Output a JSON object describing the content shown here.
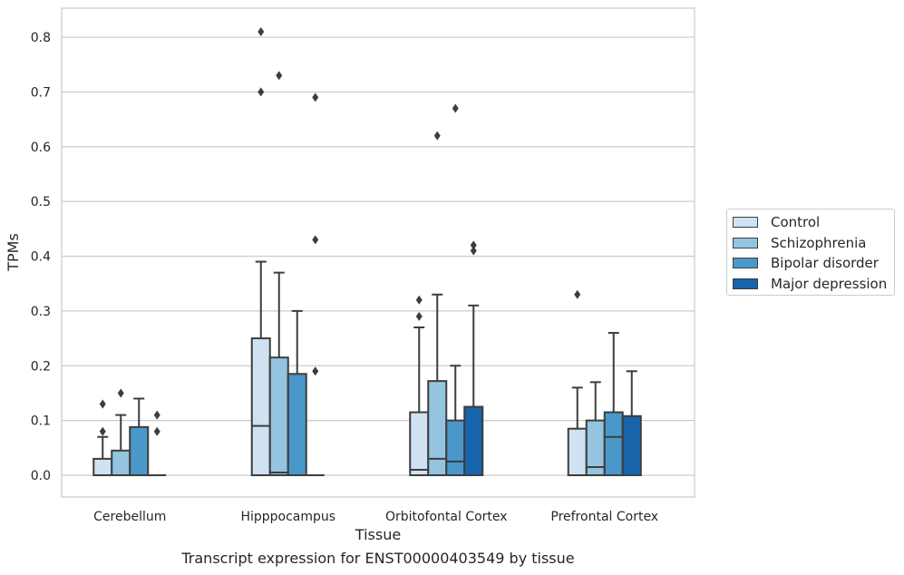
{
  "chart_data": {
    "type": "box",
    "xlabel": "Tissue",
    "ylabel": "TPMs",
    "caption": "Transcript expression for ENST00000403549 by tissue",
    "ylim": [
      -0.04,
      0.855
    ],
    "yticks": [
      "0.0",
      "0.1",
      "0.2",
      "0.3",
      "0.4",
      "0.5",
      "0.6",
      "0.7",
      "0.8"
    ],
    "grid": true,
    "legend_position": "right",
    "categories": [
      "Cerebellum",
      "Hipppocampus",
      "Orbitofontal Cortex",
      "Prefrontal Cortex"
    ],
    "series": [
      {
        "name": "Control",
        "color": "#d0e1f2",
        "boxes": [
          {
            "q1": 0.0,
            "median": 0.0,
            "q3": 0.03,
            "whisker_low": 0.0,
            "whisker_high": 0.07,
            "outliers": [
              0.08,
              0.13
            ]
          },
          {
            "q1": 0.0,
            "median": 0.09,
            "q3": 0.25,
            "whisker_low": 0.0,
            "whisker_high": 0.39,
            "outliers": [
              0.7,
              0.81
            ]
          },
          {
            "q1": 0.0,
            "median": 0.01,
            "q3": 0.115,
            "whisker_low": 0.0,
            "whisker_high": 0.27,
            "outliers": [
              0.29,
              0.32
            ]
          },
          {
            "q1": 0.0,
            "median": 0.0,
            "q3": 0.085,
            "whisker_low": 0.0,
            "whisker_high": 0.16,
            "outliers": [
              0.33
            ]
          }
        ]
      },
      {
        "name": "Schizophrenia",
        "color": "#94c4df",
        "boxes": [
          {
            "q1": 0.0,
            "median": 0.0,
            "q3": 0.045,
            "whisker_low": 0.0,
            "whisker_high": 0.11,
            "outliers": [
              0.15
            ]
          },
          {
            "q1": 0.0,
            "median": 0.005,
            "q3": 0.215,
            "whisker_low": 0.0,
            "whisker_high": 0.37,
            "outliers": [
              0.73
            ]
          },
          {
            "q1": 0.0,
            "median": 0.03,
            "q3": 0.172,
            "whisker_low": 0.0,
            "whisker_high": 0.33,
            "outliers": [
              0.62
            ]
          },
          {
            "q1": 0.0,
            "median": 0.015,
            "q3": 0.1,
            "whisker_low": 0.0,
            "whisker_high": 0.17,
            "outliers": []
          }
        ]
      },
      {
        "name": "Bipolar disorder",
        "color": "#4a98c9",
        "boxes": [
          {
            "q1": 0.0,
            "median": 0.0,
            "q3": 0.088,
            "whisker_low": 0.0,
            "whisker_high": 0.14,
            "outliers": []
          },
          {
            "q1": 0.0,
            "median": 0.0,
            "q3": 0.185,
            "whisker_low": 0.0,
            "whisker_high": 0.3,
            "outliers": []
          },
          {
            "q1": 0.0,
            "median": 0.025,
            "q3": 0.1,
            "whisker_low": 0.0,
            "whisker_high": 0.2,
            "outliers": [
              0.67
            ]
          },
          {
            "q1": 0.0,
            "median": 0.07,
            "q3": 0.115,
            "whisker_low": 0.0,
            "whisker_high": 0.26,
            "outliers": []
          }
        ]
      },
      {
        "name": "Major depression",
        "color": "#1764ab",
        "boxes": [
          {
            "q1": 0.0,
            "median": 0.0,
            "q3": 0.0,
            "whisker_low": 0.0,
            "whisker_high": 0.0,
            "outliers": [
              0.08,
              0.11
            ]
          },
          {
            "q1": 0.0,
            "median": 0.0,
            "q3": 0.0,
            "whisker_low": 0.0,
            "whisker_high": 0.0,
            "outliers": [
              0.19,
              0.43,
              0.69
            ]
          },
          {
            "q1": 0.0,
            "median": 0.0,
            "q3": 0.125,
            "whisker_low": 0.0,
            "whisker_high": 0.31,
            "outliers": [
              0.41,
              0.42
            ]
          },
          {
            "q1": 0.0,
            "median": 0.0,
            "q3": 0.108,
            "whisker_low": 0.0,
            "whisker_high": 0.19,
            "outliers": []
          }
        ]
      }
    ]
  }
}
